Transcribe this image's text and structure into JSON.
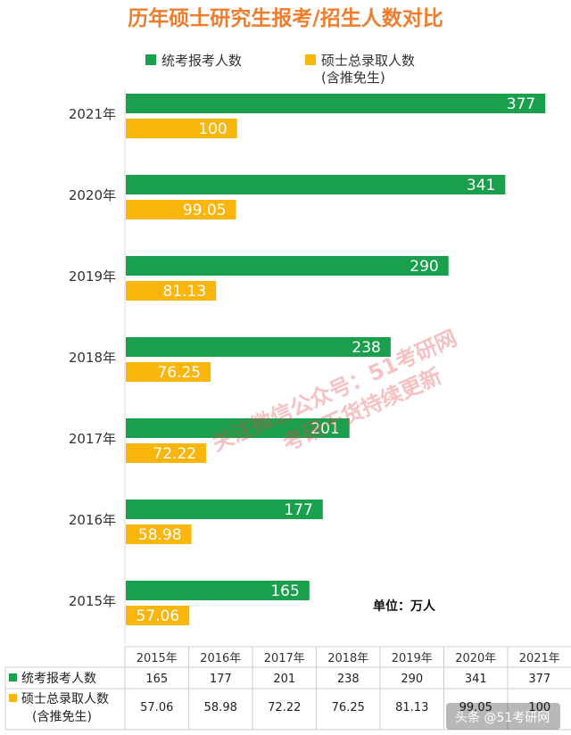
{
  "colors": {
    "title": "#f07d2e",
    "series_green": "#1aa04d",
    "series_orange": "#fbb60d",
    "watermark": "#e8474a"
  },
  "chart_data": {
    "type": "bar",
    "orientation": "horizontal",
    "title": "历年硕士研究生报考/招生人数对比",
    "categories": [
      "2021年",
      "2020年",
      "2019年",
      "2018年",
      "2017年",
      "2016年",
      "2015年"
    ],
    "series": [
      {
        "name": "统考报考人数",
        "values": [
          377,
          341,
          290,
          238,
          201,
          177,
          165
        ],
        "labels": [
          "377",
          "341",
          "290",
          "238",
          "201",
          "177",
          "165"
        ]
      },
      {
        "name": "硕士总录取人数",
        "name_line2": "(含推免生)",
        "values": [
          100,
          99.05,
          81.13,
          76.25,
          72.22,
          58.98,
          57.06
        ],
        "labels": [
          "100",
          "99.05",
          "81.13",
          "76.25",
          "72.22",
          "58.98",
          "57.06"
        ]
      }
    ],
    "xlim": [
      0,
      380
    ],
    "legend": "top",
    "grid": false,
    "unit_note": "单位：万人"
  },
  "table": {
    "years": [
      "2015年",
      "2016年",
      "2017年",
      "2018年",
      "2019年",
      "2020年",
      "2021年"
    ],
    "rows": [
      {
        "label": "统考报考人数",
        "label2": "",
        "values": [
          "165",
          "177",
          "201",
          "238",
          "290",
          "341",
          "377"
        ]
      },
      {
        "label": "硕士总录取人数",
        "label2": "(含推免生)",
        "values": [
          "57.06",
          "58.98",
          "72.22",
          "76.25",
          "81.13",
          "99.05",
          "100"
        ]
      }
    ]
  },
  "watermark": {
    "line1": "关注微信公众号：51考研网",
    "line2": "考研干货持续更新"
  },
  "footer": {
    "text": "头条 @51考研网"
  }
}
